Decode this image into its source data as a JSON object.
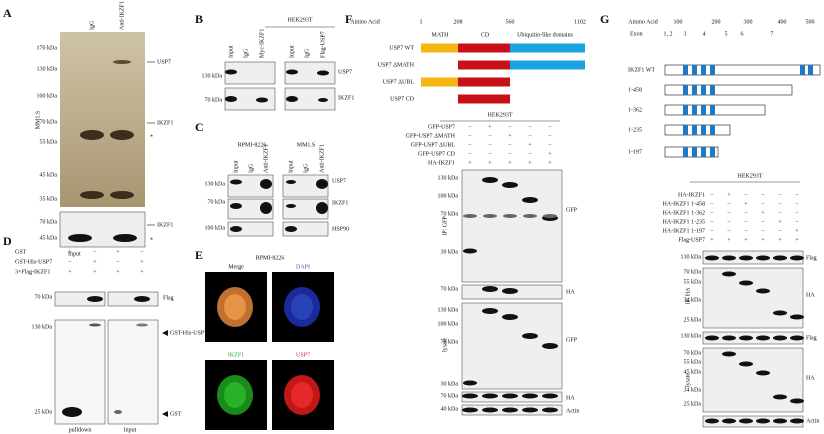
{
  "panels": {
    "A": {
      "letter": "A",
      "lanes": [
        "IgG",
        "Anti-IKZF1"
      ],
      "markers": [
        "170 kDa",
        "130 kDa",
        "100 kDa",
        "70 kDa",
        "55 kDa",
        "45 kDa",
        "35 kDa"
      ],
      "cell": "MM1.S",
      "bands": [
        "USP7",
        "IKZF1",
        "*"
      ],
      "lower_markers": [
        "70 kDa",
        "45 kDa"
      ],
      "lower_bands": [
        "IKZF1",
        "*"
      ],
      "input": "Input"
    },
    "B": {
      "letter": "B",
      "cell": "HEK293T",
      "lanes": [
        "Input",
        "IgG",
        "Myc-IKZF1",
        "Input",
        "IgG",
        "Flag-USP7"
      ],
      "markers": [
        "130 kDa",
        "70 kDa"
      ],
      "bands": [
        "USP7",
        "IKZF1"
      ]
    },
    "C": {
      "letter": "C",
      "cells": [
        "RPMI-8226",
        "MM1.S"
      ],
      "lanes": [
        "Input",
        "IgG",
        "Anti-IKZF1",
        "Input",
        "IgG",
        "Anti-IKZF1"
      ],
      "markers": [
        "130 kDa",
        "70 kDa",
        "100 kDa"
      ],
      "bands": [
        "USP7",
        "IKZF1",
        "HSP90"
      ]
    },
    "D": {
      "letter": "D",
      "rows": [
        "GST",
        "GST-His-USP7",
        "3×Flag-IKZF1"
      ],
      "signs": [
        [
          "+",
          "−",
          "+",
          "−"
        ],
        [
          "−",
          "+",
          "−",
          "+"
        ],
        [
          "+",
          "+",
          "+",
          "+"
        ]
      ],
      "markers": [
        "70 kDa",
        "130 kDa",
        "25 kDa"
      ],
      "bands": [
        "Flag",
        "GST-His-USP7",
        "GST"
      ],
      "lanes": [
        "pulldown",
        "Input"
      ]
    },
    "E": {
      "letter": "E",
      "cell": "RPMI-8226",
      "tiles": [
        "Merge",
        "DAPI",
        "IKZF1",
        "USP7"
      ]
    },
    "F": {
      "letter": "F",
      "header": [
        "Amino Acid",
        "1",
        "208",
        "560",
        "1102"
      ],
      "domains": [
        "MATH",
        "CD",
        "Ubiquitin-like domains"
      ],
      "constructs": [
        "USP7 WT",
        "USP7 ΔMATH",
        "USP7 ΔUBL",
        "USP7 CD"
      ],
      "cell": "HEK293T",
      "rows": [
        "GFP-USP7",
        "GFP-USP7 ΔMATH",
        "GFP-USP7 ΔUBL",
        "GFP-USP7 CD",
        "HA-IKZF1"
      ],
      "signs": [
        [
          "−",
          "+",
          "−",
          "−",
          "−"
        ],
        [
          "−",
          "−",
          "+",
          "−",
          "−"
        ],
        [
          "−",
          "−",
          "−",
          "+",
          "−"
        ],
        [
          "−",
          "−",
          "−",
          "−",
          "+"
        ],
        [
          "+",
          "+",
          "+",
          "+",
          "+"
        ]
      ],
      "ip_markers": [
        "130 kDa",
        "100 kDa",
        "70 kDa",
        "30 kDa",
        "70 kDa"
      ],
      "lysate_markers": [
        "130 kDa",
        "100 kDa",
        "70 kDa",
        "30 kDa",
        "70 kDa",
        "40 kDa"
      ],
      "sections": [
        "IP: GFP",
        "lysate"
      ],
      "bands": [
        "GFP",
        "HA",
        "GFP",
        "HA",
        "Actin"
      ]
    },
    "G": {
      "letter": "G",
      "header": [
        "Amino Acid",
        "100",
        "200",
        "300",
        "400",
        "500"
      ],
      "exon_label": "Exon",
      "exons": [
        "1, 2",
        "3",
        "4",
        "5",
        "6",
        "7"
      ],
      "constructs": [
        "IKZF1 WT",
        "1-458",
        "1-362",
        "1-235",
        "1-197"
      ],
      "cell": "HEK293T",
      "rows": [
        "HA-IKZF1",
        "HA-IKZF1 1-458",
        "HA-IKZF1 1-362",
        "HA-IKZF1 1-235",
        "HA-IKZF1 1-197",
        "Flag-USP7"
      ],
      "signs": [
        [
          "−",
          "+",
          "−",
          "−",
          "−",
          "−"
        ],
        [
          "−",
          "−",
          "+",
          "−",
          "−",
          "−"
        ],
        [
          "−",
          "−",
          "−",
          "+",
          "−",
          "−"
        ],
        [
          "−",
          "−",
          "−",
          "−",
          "+",
          "−"
        ],
        [
          "−",
          "−",
          "−",
          "−",
          "−",
          "+"
        ],
        [
          "+",
          "+",
          "+",
          "+",
          "+",
          "+"
        ]
      ],
      "ip_markers": [
        "130 kDa",
        "70 kDa",
        "55 kDa",
        "34 kDa",
        "25 kDa"
      ],
      "lysate_markers": [
        "130 kDa",
        "70 kDa",
        "55 kDa",
        "45 kDa",
        "34 kDa",
        "25 kDa"
      ],
      "sections": [
        "IP: HA",
        "lysate"
      ],
      "bands": [
        "Flag",
        "HA",
        "Flag",
        "HA",
        "Actin"
      ]
    }
  }
}
